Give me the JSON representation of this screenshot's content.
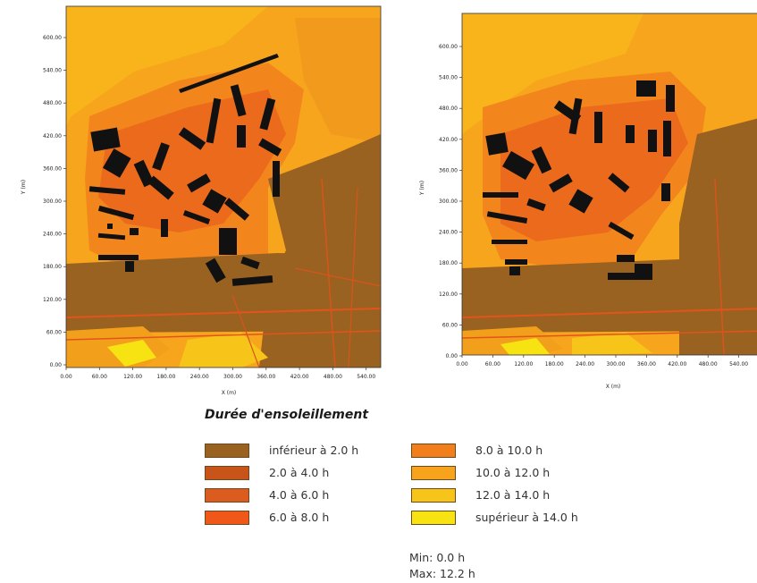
{
  "maps": [
    {
      "id": "left",
      "x_axis": {
        "label": "X (m)",
        "ticks": [
          "0.00",
          "60.00",
          "120.00",
          "180.00",
          "240.00",
          "300.00",
          "360.00",
          "420.00",
          "480.00",
          "540.00"
        ]
      },
      "y_axis": {
        "label": "Y (m)",
        "ticks": [
          "0.00",
          "60.00",
          "120.00",
          "180.00",
          "240.00",
          "300.00",
          "360.00",
          "420.00",
          "480.00",
          "540.00",
          "600.00"
        ]
      }
    },
    {
      "id": "right",
      "x_axis": {
        "label": "X (m)",
        "ticks": [
          "0.00",
          "60.00",
          "120.00",
          "180.00",
          "240.00",
          "300.00",
          "360.00",
          "420.00",
          "480.00",
          "540.00"
        ]
      },
      "y_axis": {
        "label": "Y (m)",
        "ticks": [
          "0.00",
          "60.00",
          "120.00",
          "180.00",
          "240.00",
          "300.00",
          "360.00",
          "420.00",
          "480.00",
          "540.00",
          "600.00"
        ]
      }
    }
  ],
  "legend": {
    "title": "Durée d'ensoleillement",
    "items": [
      {
        "label": "inférieur à 2.0 h",
        "color": "#9a6220"
      },
      {
        "label": "2.0 à 4.0 h",
        "color": "#c8541a"
      },
      {
        "label": "4.0 à 6.0 h",
        "color": "#db5c1e"
      },
      {
        "label": "6.0 à 8.0 h",
        "color": "#f0581a"
      },
      {
        "label": "8.0 à 10.0 h",
        "color": "#f27e1c"
      },
      {
        "label": "10.0 à 12.0 h",
        "color": "#f7a31c"
      },
      {
        "label": "12.0 à 14.0 h",
        "color": "#f7c51a"
      },
      {
        "label": "supérieur à 14.0 h",
        "color": "#f8e312"
      }
    ],
    "min": "Min: 0.0 h",
    "max": "Max: 12.2 h"
  }
}
